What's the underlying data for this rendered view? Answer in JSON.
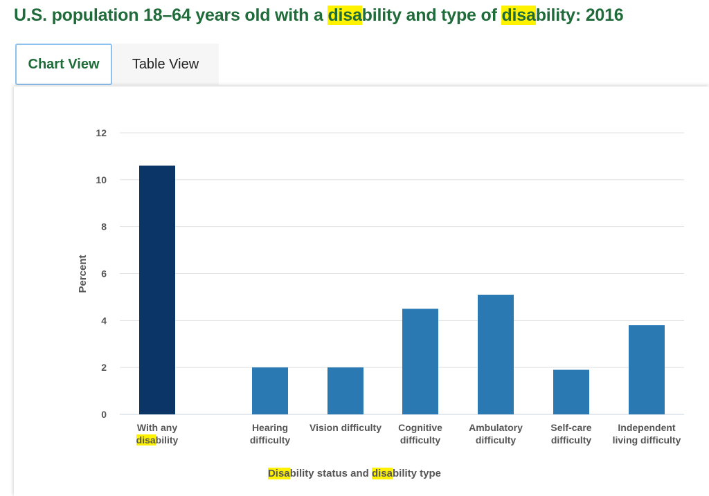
{
  "page": {
    "title_parts": [
      {
        "text": "U.S. population 18–64 years old with a ",
        "hl": false
      },
      {
        "text": "disa",
        "hl": true
      },
      {
        "text": "bility and type of ",
        "hl": false
      },
      {
        "text": "disa",
        "hl": true
      },
      {
        "text": "bility: 2016",
        "hl": false
      }
    ]
  },
  "tabs": {
    "chart_view": "Chart View",
    "table_view": "Table View",
    "active": "chart_view"
  },
  "colors": {
    "title": "#1f6b3a",
    "highlight": "#fff200",
    "bar_primary": "#0b3566",
    "bar_secondary": "#2b79b3",
    "grid": "#e1e1e1"
  },
  "chart_data": {
    "type": "bar",
    "categories": [
      [
        {
          "text": "With any",
          "hl": false
        },
        {
          "text": "|",
          "hl": false
        },
        {
          "text": "disa",
          "hl": true
        },
        {
          "text": "bility",
          "hl": false
        }
      ],
      [
        {
          "text": "Hearing",
          "hl": false
        },
        {
          "text": "|",
          "hl": false
        },
        {
          "text": "difficulty",
          "hl": false
        }
      ],
      [
        {
          "text": "Vision difficulty",
          "hl": false
        }
      ],
      [
        {
          "text": "Cognitive",
          "hl": false
        },
        {
          "text": "|",
          "hl": false
        },
        {
          "text": "difficulty",
          "hl": false
        }
      ],
      [
        {
          "text": "Ambulatory",
          "hl": false
        },
        {
          "text": "|",
          "hl": false
        },
        {
          "text": "difficulty",
          "hl": false
        }
      ],
      [
        {
          "text": "Self-care",
          "hl": false
        },
        {
          "text": "|",
          "hl": false
        },
        {
          "text": "difficulty",
          "hl": false
        }
      ],
      [
        {
          "text": "Independent",
          "hl": false
        },
        {
          "text": "|",
          "hl": false
        },
        {
          "text": "living difficulty",
          "hl": false
        }
      ]
    ],
    "values": [
      10.6,
      2.0,
      2.0,
      4.5,
      5.1,
      1.9,
      3.8
    ],
    "ylabel": "Percent",
    "xlabel_parts": [
      {
        "text": "Disa",
        "hl": true
      },
      {
        "text": "bility status and ",
        "hl": false
      },
      {
        "text": "disa",
        "hl": true
      },
      {
        "text": "bility type",
        "hl": false
      }
    ],
    "ylim": [
      0,
      12
    ],
    "yticks": [
      0,
      2,
      4,
      6,
      8,
      10,
      12
    ],
    "grid": true,
    "legend": "none"
  }
}
